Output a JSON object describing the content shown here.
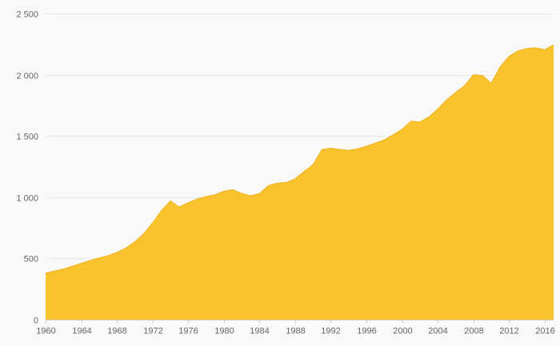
{
  "page": {
    "background": "#f9f9f9"
  },
  "chart_data": {
    "type": "area",
    "title": "",
    "subtitle": "",
    "xlabel": "",
    "ylabel": "",
    "legend": "none",
    "grid": true,
    "xlim": [
      1960,
      2017
    ],
    "ylim": [
      0,
      2500
    ],
    "x": [
      1960,
      1961,
      1962,
      1963,
      1964,
      1965,
      1966,
      1967,
      1968,
      1969,
      1970,
      1971,
      1972,
      1973,
      1974,
      1975,
      1976,
      1977,
      1978,
      1979,
      1980,
      1981,
      1982,
      1983,
      1984,
      1985,
      1986,
      1987,
      1988,
      1989,
      1990,
      1991,
      1992,
      1993,
      1994,
      1995,
      1996,
      1997,
      1998,
      1999,
      2000,
      2001,
      2002,
      2003,
      2004,
      2005,
      2006,
      2007,
      2008,
      2009,
      2010,
      2011,
      2012,
      2013,
      2014,
      2015,
      2016,
      2017
    ],
    "series": [
      {
        "name": "value",
        "values": [
          380,
          396,
          414,
          436,
          460,
          483,
          504,
          522,
          548,
          585,
          635,
          700,
          790,
          890,
          970,
          920,
          955,
          985,
          1005,
          1020,
          1048,
          1062,
          1030,
          1012,
          1030,
          1095,
          1115,
          1120,
          1150,
          1210,
          1265,
          1390,
          1400,
          1390,
          1382,
          1395,
          1418,
          1442,
          1468,
          1510,
          1555,
          1620,
          1615,
          1655,
          1720,
          1795,
          1855,
          1910,
          2000,
          1995,
          1930,
          2065,
          2150,
          2195,
          2215,
          2220,
          2205,
          2245
        ]
      }
    ],
    "y_ticks": [
      {
        "value": 0,
        "label": "0"
      },
      {
        "value": 500,
        "label": "500"
      },
      {
        "value": 1000,
        "label": "1 000"
      },
      {
        "value": 1500,
        "label": "1 500"
      },
      {
        "value": 2000,
        "label": "2 000"
      },
      {
        "value": 2500,
        "label": "2 500"
      }
    ],
    "x_ticks": [
      {
        "value": 1960,
        "label": "1960"
      },
      {
        "value": 1964,
        "label": "1964"
      },
      {
        "value": 1968,
        "label": "1968"
      },
      {
        "value": 1972,
        "label": "1972"
      },
      {
        "value": 1976,
        "label": "1976"
      },
      {
        "value": 1980,
        "label": "1980"
      },
      {
        "value": 1984,
        "label": "1984"
      },
      {
        "value": 1988,
        "label": "1988"
      },
      {
        "value": 1992,
        "label": "1992"
      },
      {
        "value": 1996,
        "label": "1996"
      },
      {
        "value": 2000,
        "label": "2000"
      },
      {
        "value": 2004,
        "label": "2004"
      },
      {
        "value": 2008,
        "label": "2008"
      },
      {
        "value": 2012,
        "label": "2012"
      },
      {
        "value": 2016,
        "label": "2016"
      }
    ],
    "colors": {
      "background": "#f9f9f9",
      "area_fill": "#f8c32d",
      "area_stroke": "#f0b21c",
      "grid": "#e8e8e8",
      "axis": "#cccccc",
      "label": "#666666"
    }
  }
}
